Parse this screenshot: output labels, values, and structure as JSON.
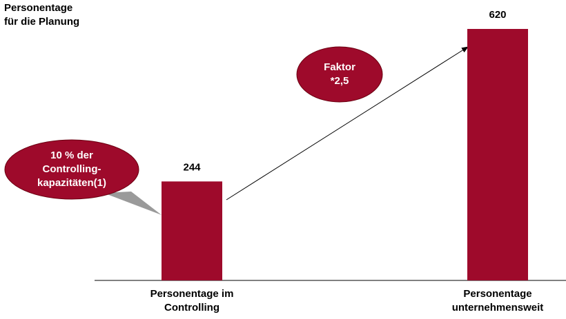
{
  "chart_data": {
    "type": "bar",
    "title": [
      "Personentage",
      "für die Planung"
    ],
    "categories": [
      [
        "Personentage im",
        "Controlling"
      ],
      [
        "Personentage",
        "unternehmensweit"
      ]
    ],
    "values": [
      244,
      620
    ],
    "color": "#9e0a2b",
    "annotations": [
      [
        "10 % der",
        "Controlling-",
        "kapazitäten(1)"
      ],
      [
        "Faktor",
        "*2,5"
      ]
    ]
  }
}
